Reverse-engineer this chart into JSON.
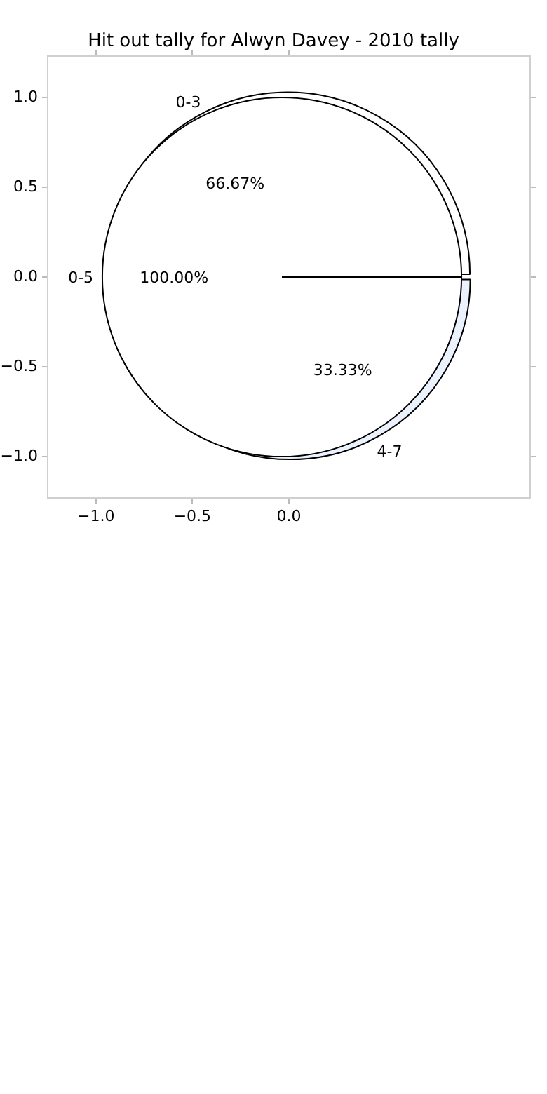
{
  "chart_data": [
    {
      "type": "scatter",
      "title": "Hit out tally for Alwyn Davey - 2010 tally",
      "legend": false,
      "xlim": [
        -1.25,
        1.25
      ],
      "ylim": [
        -1.23,
        1.23
      ],
      "xticks": [
        {
          "value": -1,
          "label": "−1.0"
        },
        {
          "value": -0.5,
          "label": "−0.5"
        },
        {
          "value": 0,
          "label": "0.0"
        }
      ],
      "yticks": [
        {
          "value": 1,
          "label": "1.0"
        },
        {
          "value": 0.5,
          "label": "0.5"
        },
        {
          "value": 0,
          "label": "0.0"
        },
        {
          "value": -0.5,
          "label": "−0.5"
        },
        {
          "value": -1,
          "label": "−1.0"
        }
      ]
    },
    {
      "type": "pie",
      "categories": [
        "0-3",
        "4-7"
      ],
      "values": [
        66.67,
        33.33
      ],
      "colors": [
        "#ffffff",
        "#ebf2fd"
      ],
      "value_labels": [
        "66.67%",
        "33.33%"
      ],
      "legend": false
    },
    {
      "type": "pie",
      "categories": [
        "0-5"
      ],
      "values": [
        100
      ],
      "colors": [
        "#ffffff"
      ],
      "value_labels": [
        "100.00%"
      ],
      "legend": false
    }
  ]
}
